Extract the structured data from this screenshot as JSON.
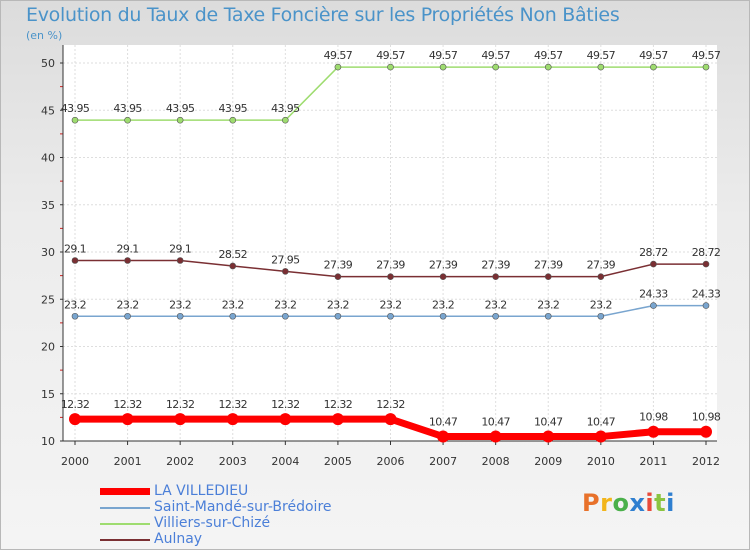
{
  "title": "Evolution du Taux de Taxe Foncière sur les Propriétés Non Bâties",
  "unit": "(en %)",
  "logo": {
    "text": "Proxiti",
    "colors": [
      "#e8712a",
      "#f2b51b",
      "#4ab04a",
      "#2f7fd0",
      "#e94a3a",
      "#8bc441",
      "#2f7fd0"
    ]
  },
  "chart_data": {
    "type": "line",
    "categories": [
      "2000",
      "2001",
      "2002",
      "2003",
      "2004",
      "2005",
      "2006",
      "2007",
      "2008",
      "2009",
      "2010",
      "2011",
      "2012"
    ],
    "ylim": [
      10,
      50
    ],
    "yticks": [
      10,
      15,
      20,
      25,
      30,
      35,
      40,
      45,
      50
    ],
    "grid": true,
    "series": [
      {
        "name": "LA VILLEDIEU",
        "color": "#ff0000",
        "thick": true,
        "values": [
          12.32,
          12.32,
          12.32,
          12.32,
          12.32,
          12.32,
          12.32,
          10.47,
          10.47,
          10.47,
          10.47,
          10.98,
          10.98
        ],
        "labels": [
          "12.32",
          "12.32",
          "12.32",
          "12.32",
          "12.32",
          "12.32",
          "12.32",
          "10.47",
          "10.47",
          "10.47",
          "10.47",
          "10.98",
          "10.98"
        ]
      },
      {
        "name": "Saint-Mandé-sur-Brédoire",
        "color": "#79a5cf",
        "thick": false,
        "values": [
          23.2,
          23.2,
          23.2,
          23.2,
          23.2,
          23.2,
          23.2,
          23.2,
          23.2,
          23.2,
          23.2,
          24.33,
          24.33
        ],
        "labels": [
          "23.2",
          "23.2",
          "23.2",
          "23.2",
          "23.2",
          "23.2",
          "23.2",
          "23.2",
          "23.2",
          "23.2",
          "23.2",
          "24.33",
          "24.33"
        ]
      },
      {
        "name": "Villiers-sur-Chizé",
        "color": "#9edc6f",
        "thick": false,
        "values": [
          43.95,
          43.95,
          43.95,
          43.95,
          43.95,
          49.57,
          49.57,
          49.57,
          49.57,
          49.57,
          49.57,
          49.57,
          49.57
        ],
        "labels": [
          "43.95",
          "43.95",
          "43.95",
          "43.95",
          "43.95",
          "49.57",
          "49.57",
          "49.57",
          "49.57",
          "49.57",
          "49.57",
          "49.57",
          "49.57"
        ]
      },
      {
        "name": "Aulnay",
        "color": "#7a2f33",
        "thick": false,
        "values": [
          29.1,
          29.1,
          29.1,
          28.52,
          27.95,
          27.39,
          27.39,
          27.39,
          27.39,
          27.39,
          27.39,
          28.72,
          28.72
        ],
        "labels": [
          "29.1",
          "29.1",
          "29.1",
          "28.52",
          "27.95",
          "27.39",
          "27.39",
          "27.39",
          "27.39",
          "27.39",
          "27.39",
          "28.72",
          "28.72"
        ]
      }
    ]
  }
}
